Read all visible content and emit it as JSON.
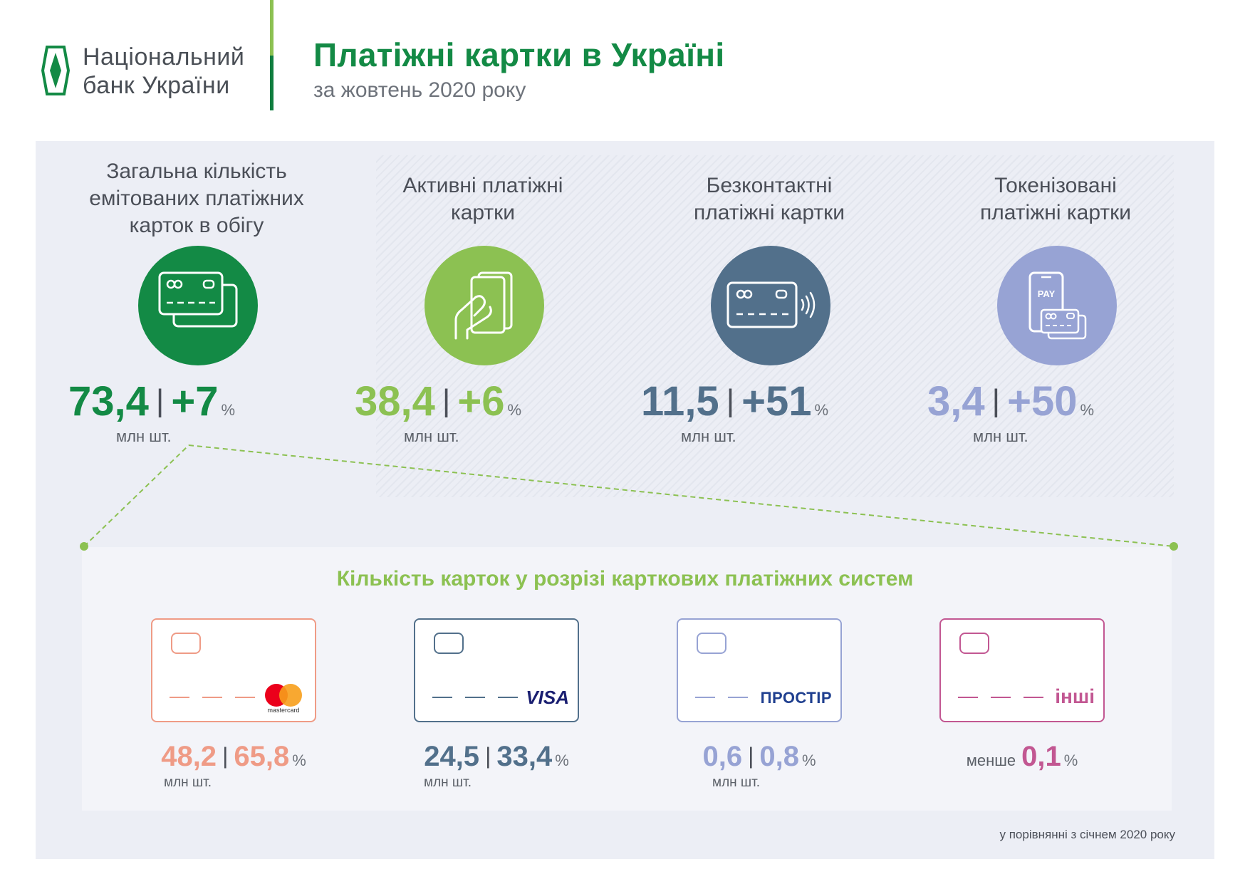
{
  "header": {
    "org_name_line1": "Національний",
    "org_name_line2": "банк України",
    "title": "Платіжні картки в Україні",
    "subtitle": "за жовтень 2020 року"
  },
  "colors": {
    "dark_green": "#138a45",
    "light_green": "#8cc152",
    "slate": "#52708b",
    "lavender": "#97a3d4",
    "salmon": "#ef9b86",
    "pink": "#c25792"
  },
  "stats": [
    {
      "label": "Загальна кількість емітованих платіжних карток в обігу",
      "value": "73,4",
      "change": "+7",
      "pct": "%",
      "unit": "млн шт.",
      "icon": "cards-icon"
    },
    {
      "label": "Активні платіжні картки",
      "value": "38,4",
      "change": "+6",
      "pct": "%",
      "unit": "млн шт.",
      "icon": "hand-card-icon"
    },
    {
      "label": "Безконтактні платіжні картки",
      "value": "11,5",
      "change": "+51",
      "pct": "%",
      "unit": "млн шт.",
      "icon": "contactless-card-icon"
    },
    {
      "label": "Токенізовані платіжні картки",
      "value": "3,4",
      "change": "+50",
      "pct": "%",
      "unit": "млн шт.",
      "icon": "phone-pay-icon"
    }
  ],
  "systems": {
    "title": "Кількість карток у розрізі карткових платіжних систем",
    "items": [
      {
        "brand": "mastercard",
        "value": "48,2",
        "share": "65,8",
        "pct": "%",
        "unit": "млн шт."
      },
      {
        "brand": "VISA",
        "value": "24,5",
        "share": "33,4",
        "pct": "%",
        "unit": "млн шт."
      },
      {
        "brand": "ПРОСТІР",
        "value": "0,6",
        "share": "0,8",
        "pct": "%",
        "unit": "млн шт."
      },
      {
        "brand": "інші",
        "prefix": "менше",
        "share": "0,1",
        "pct": "%"
      }
    ]
  },
  "footnote": "у порівнянні з січнем 2020 року"
}
